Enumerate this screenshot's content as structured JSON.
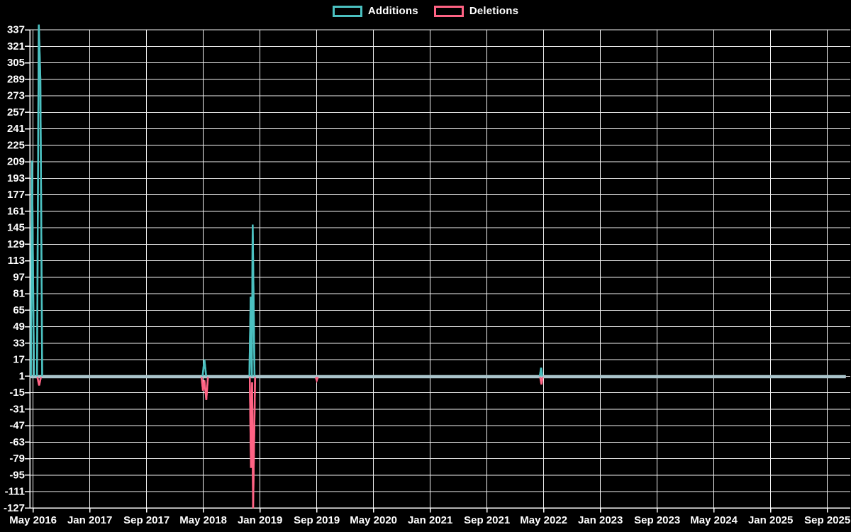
{
  "page": {
    "background": "#000000"
  },
  "legend": {
    "items": [
      {
        "label": "Additions",
        "color": "#4bc0c0"
      },
      {
        "label": "Deletions",
        "color": "#ff6384"
      }
    ]
  },
  "chart_data": {
    "type": "line",
    "title": "",
    "legend_position": "top-center",
    "grid": true,
    "grid_color": "#f2f2f2",
    "axis_color": "#ffffff",
    "text_color": "#ffffff",
    "background_color": "#000000",
    "baseline_color": "#aac4cb",
    "y_axis": {
      "ticks": [
        337,
        321,
        305,
        289,
        273,
        257,
        241,
        225,
        209,
        193,
        177,
        161,
        145,
        129,
        113,
        97,
        81,
        65,
        49,
        33,
        17,
        1,
        -15,
        -31,
        -47,
        -63,
        -79,
        -95,
        -111,
        -127
      ],
      "min": -127,
      "max": 337
    },
    "x_axis": {
      "unit": "months since May 2016",
      "tick_months": [
        0,
        8,
        16,
        24,
        32,
        40,
        48,
        56,
        64,
        72,
        80,
        88,
        96,
        104,
        112
      ],
      "tick_labels": [
        "May 2016",
        "Jan 2017",
        "Sep 2017",
        "May 2018",
        "Jan 2019",
        "Sep 2019",
        "May 2020",
        "Jan 2021",
        "Sep 2021",
        "May 2022",
        "Jan 2023",
        "Sep 2023",
        "May 2024",
        "Jan 2025",
        "Sep 2025"
      ]
    },
    "series": [
      {
        "name": "Additions",
        "color": "#4bc0c0",
        "base": 1,
        "points": [
          [
            -0.45,
            1
          ],
          [
            -0.32,
            1
          ],
          [
            -0.15,
            210
          ],
          [
            0.12,
            1
          ],
          [
            0.55,
            1
          ],
          [
            0.8,
            342
          ],
          [
            1.02,
            290
          ],
          [
            1.28,
            1
          ],
          [
            23.9,
            1
          ],
          [
            24.15,
            17
          ],
          [
            24.4,
            1
          ],
          [
            30.5,
            1
          ],
          [
            30.68,
            78
          ],
          [
            30.84,
            1
          ],
          [
            30.96,
            148
          ],
          [
            31.22,
            1
          ],
          [
            71.45,
            1
          ],
          [
            71.63,
            9
          ],
          [
            71.8,
            1
          ],
          [
            114.6,
            1
          ]
        ]
      },
      {
        "name": "Deletions",
        "color": "#ff6384",
        "base": 0,
        "points": [
          [
            -0.45,
            0
          ],
          [
            0.6,
            0
          ],
          [
            0.85,
            -8
          ],
          [
            1.1,
            0
          ],
          [
            23.75,
            0
          ],
          [
            23.95,
            -13
          ],
          [
            24.15,
            -3
          ],
          [
            24.42,
            -22
          ],
          [
            24.65,
            0
          ],
          [
            30.55,
            0
          ],
          [
            30.72,
            -88
          ],
          [
            30.88,
            -5
          ],
          [
            31.02,
            -127
          ],
          [
            31.3,
            0
          ],
          [
            39.85,
            0
          ],
          [
            40.0,
            -3
          ],
          [
            40.15,
            0
          ],
          [
            71.5,
            0
          ],
          [
            71.68,
            -7
          ],
          [
            71.85,
            0
          ],
          [
            114.6,
            0
          ]
        ]
      }
    ]
  }
}
